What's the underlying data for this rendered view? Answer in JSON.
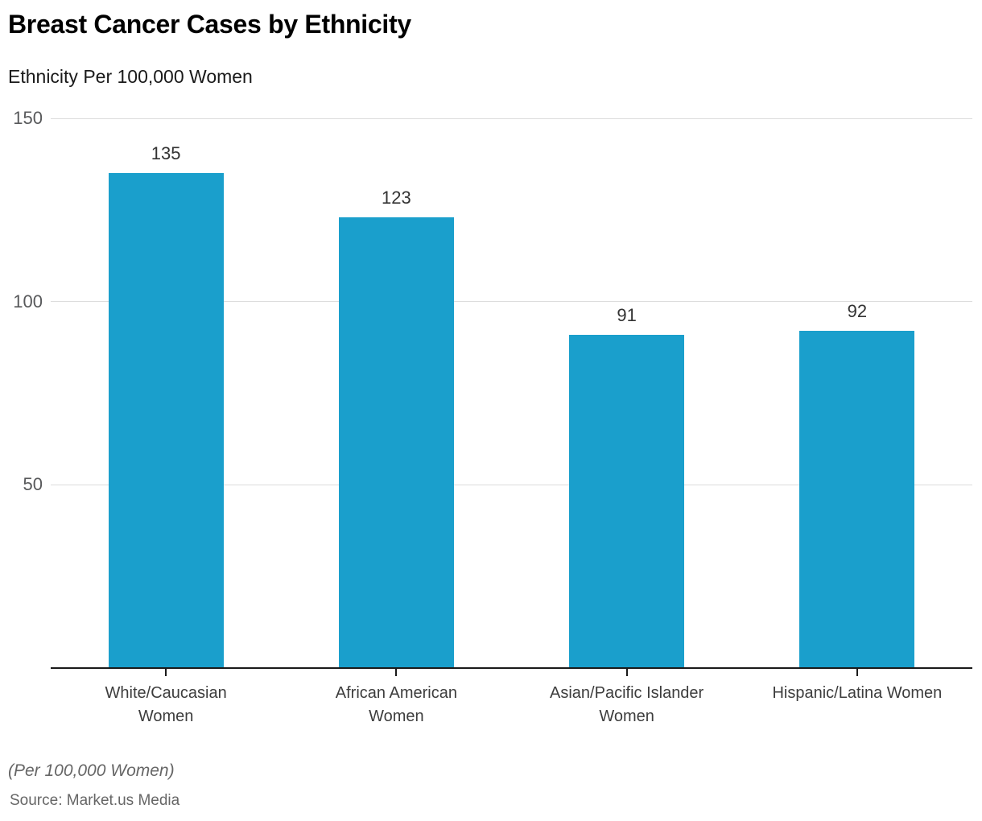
{
  "page": {
    "title": "Breast Cancer Cases by Ethnicity",
    "subtitle": "Ethnicity Per 100,000 Women",
    "footnote": "(Per 100,000 Women)",
    "source": "Source: Market.us Media"
  },
  "colors": {
    "bar": "#1A9FCC",
    "gridline": "#dcdcdc",
    "axis_line": "#1a1a1a",
    "y_tick_label": "#58595b",
    "x_category_label": "#3d3d3d",
    "value_label": "#333333",
    "footnote_text": "#666666"
  },
  "chart_data": {
    "type": "bar",
    "title": "Breast Cancer Cases by Ethnicity",
    "subtitle": "Ethnicity Per 100,000 Women",
    "categories": [
      "White/Caucasian Women",
      "African American Women",
      "Asian/Pacific Islander Women",
      "Hispanic/Latina Women"
    ],
    "category_lines": [
      [
        "White/Caucasian",
        "Women"
      ],
      [
        "African American",
        "Women"
      ],
      [
        "Asian/Pacific Islander",
        "Women"
      ],
      [
        "Hispanic/Latina Women"
      ]
    ],
    "values": [
      135,
      123,
      91,
      92
    ],
    "data_labels": [
      "135",
      "123",
      "91",
      "92"
    ],
    "xlabel": "",
    "ylabel": "",
    "ylim": [
      0,
      150
    ],
    "yticks": [
      50,
      100,
      150
    ],
    "grid": true,
    "legend": false,
    "bar_color": "#1A9FCC"
  }
}
